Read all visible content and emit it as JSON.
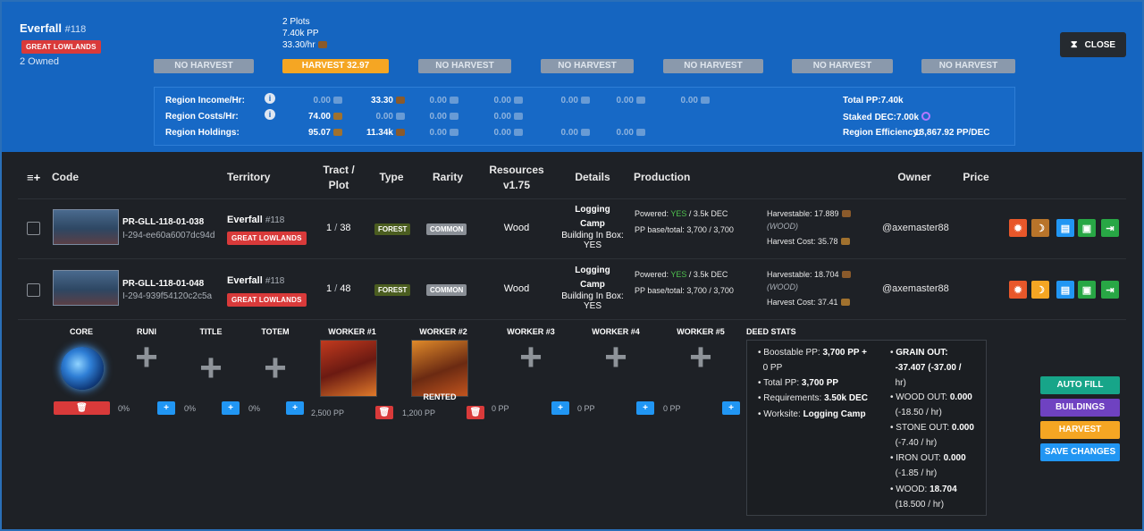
{
  "header": {
    "region_name": "Everfall",
    "region_number": "#118",
    "region_badge": "GREAT LOWLANDS",
    "owned": "2 Owned",
    "plots": "2 Plots",
    "pp": "7.40k PP",
    "rate": "33.30/hr",
    "close_label": "CLOSE",
    "harvest_buttons": [
      "NO HARVEST",
      "HARVEST 32.97",
      "NO HARVEST",
      "NO HARVEST",
      "NO HARVEST",
      "NO HARVEST",
      "NO HARVEST"
    ]
  },
  "region_stats": {
    "labels": [
      "Region Income/Hr:",
      "Region Costs/Hr:",
      "Region Holdings:"
    ],
    "income": [
      "0.00",
      "33.30",
      "0.00",
      "0.00",
      "0.00",
      "0.00",
      "0.00"
    ],
    "costs": [
      "74.00",
      "0.00",
      "0.00",
      "0.00"
    ],
    "holdings": [
      "95.07",
      "11.34k",
      "0.00",
      "0.00",
      "0.00",
      "0.00"
    ],
    "total_pp": "Total PP:7.40k",
    "staked_dec": "Staked DEC:7.00k",
    "efficiency_label": "Region Efficiency:",
    "efficiency_value": "18,867.92 PP/DEC"
  },
  "table": {
    "headers": [
      "Code",
      "Territory",
      "Tract /",
      "Plot",
      "Type",
      "Rarity",
      "Resources",
      "v1.75",
      "Details",
      "Production",
      "Owner",
      "Price"
    ],
    "rows": [
      {
        "code": "PR-GLL-118-01-038",
        "subcode": "I-294-ee60a6007dc94d",
        "territory": "Everfall",
        "territory_num": "#118",
        "territory_badge": "GREAT LOWLANDS",
        "tract": "1",
        "plot": "38",
        "type": "FOREST",
        "rarity": "COMMON",
        "resource": "Wood",
        "details": [
          "Logging",
          "Camp",
          "Building In Box:",
          "YES"
        ],
        "powered_label": "Powered:",
        "powered_value": "YES",
        "powered_dec": "/ 3.5k DEC",
        "pp_line": "PP base/total: 3,700 / 3,700",
        "harvestable": "Harvestable: 17.889",
        "harvest_res": "(WOOD)",
        "harvest_cost": "Harvest Cost: 35.78",
        "owner": "@axemaster88"
      },
      {
        "code": "PR-GLL-118-01-048",
        "subcode": "I-294-939f54120c2c5a",
        "territory": "Everfall",
        "territory_num": "#118",
        "territory_badge": "GREAT LOWLANDS",
        "tract": "1",
        "plot": "48",
        "type": "FOREST",
        "rarity": "COMMON",
        "resource": "Wood",
        "details": [
          "Logging",
          "Camp",
          "Building In Box:",
          "YES"
        ],
        "powered_label": "Powered:",
        "powered_value": "YES",
        "powered_dec": "/ 3.5k DEC",
        "pp_line": "PP base/total: 3,700 / 3,700",
        "harvestable": "Harvestable: 18.704",
        "harvest_res": "(WOOD)",
        "harvest_cost": "Harvest Cost: 37.41",
        "owner": "@axemaster88"
      }
    ]
  },
  "slots": {
    "labels": [
      "CORE",
      "RUNI",
      "TITLE",
      "TOTEM",
      "WORKER #1",
      "WORKER #2",
      "WORKER #3",
      "WORKER #4",
      "WORKER #5"
    ],
    "values": [
      "0%",
      "0%",
      "0%",
      "2,500 PP",
      "1,200 PP",
      "0 PP",
      "0 PP",
      "0 PP"
    ],
    "rented": "RENTED"
  },
  "deed_stats": {
    "title": "DEED STATS",
    "left": [
      [
        "Boostable PP: ",
        "3,700 PP +",
        "0 PP"
      ],
      [
        "Total PP: ",
        "3,700 PP",
        ""
      ],
      [
        "Requirements: ",
        "3.50k DEC",
        ""
      ],
      [
        "Worksite: ",
        "Logging Camp",
        ""
      ]
    ],
    "right": [
      [
        "GRAIN OUT:",
        "-37.407 (-37.00 /",
        "hr)"
      ],
      [
        "WOOD OUT: ",
        "0.000",
        "(-18.50 / hr)"
      ],
      [
        "STONE OUT: ",
        "0.000",
        "(-7.40 / hr)"
      ],
      [
        "IRON OUT: ",
        "0.000",
        "(-1.85 / hr)"
      ],
      [
        "WOOD: ",
        "18.704",
        "(18.500 / hr)"
      ]
    ]
  },
  "actions": {
    "auto_fill": "AUTO FILL",
    "buildings": "BUILDINGS",
    "harvest": "HARVEST",
    "save_changes": "SAVE CHANGES"
  },
  "colors": {
    "header_bg": "#1565c0",
    "harvest_active": "#f5a623",
    "badge_red": "#d93a3a",
    "auto_fill": "#17a589",
    "buildings": "#6f42c1",
    "harvest": "#f5a623",
    "save": "#2196f3"
  }
}
